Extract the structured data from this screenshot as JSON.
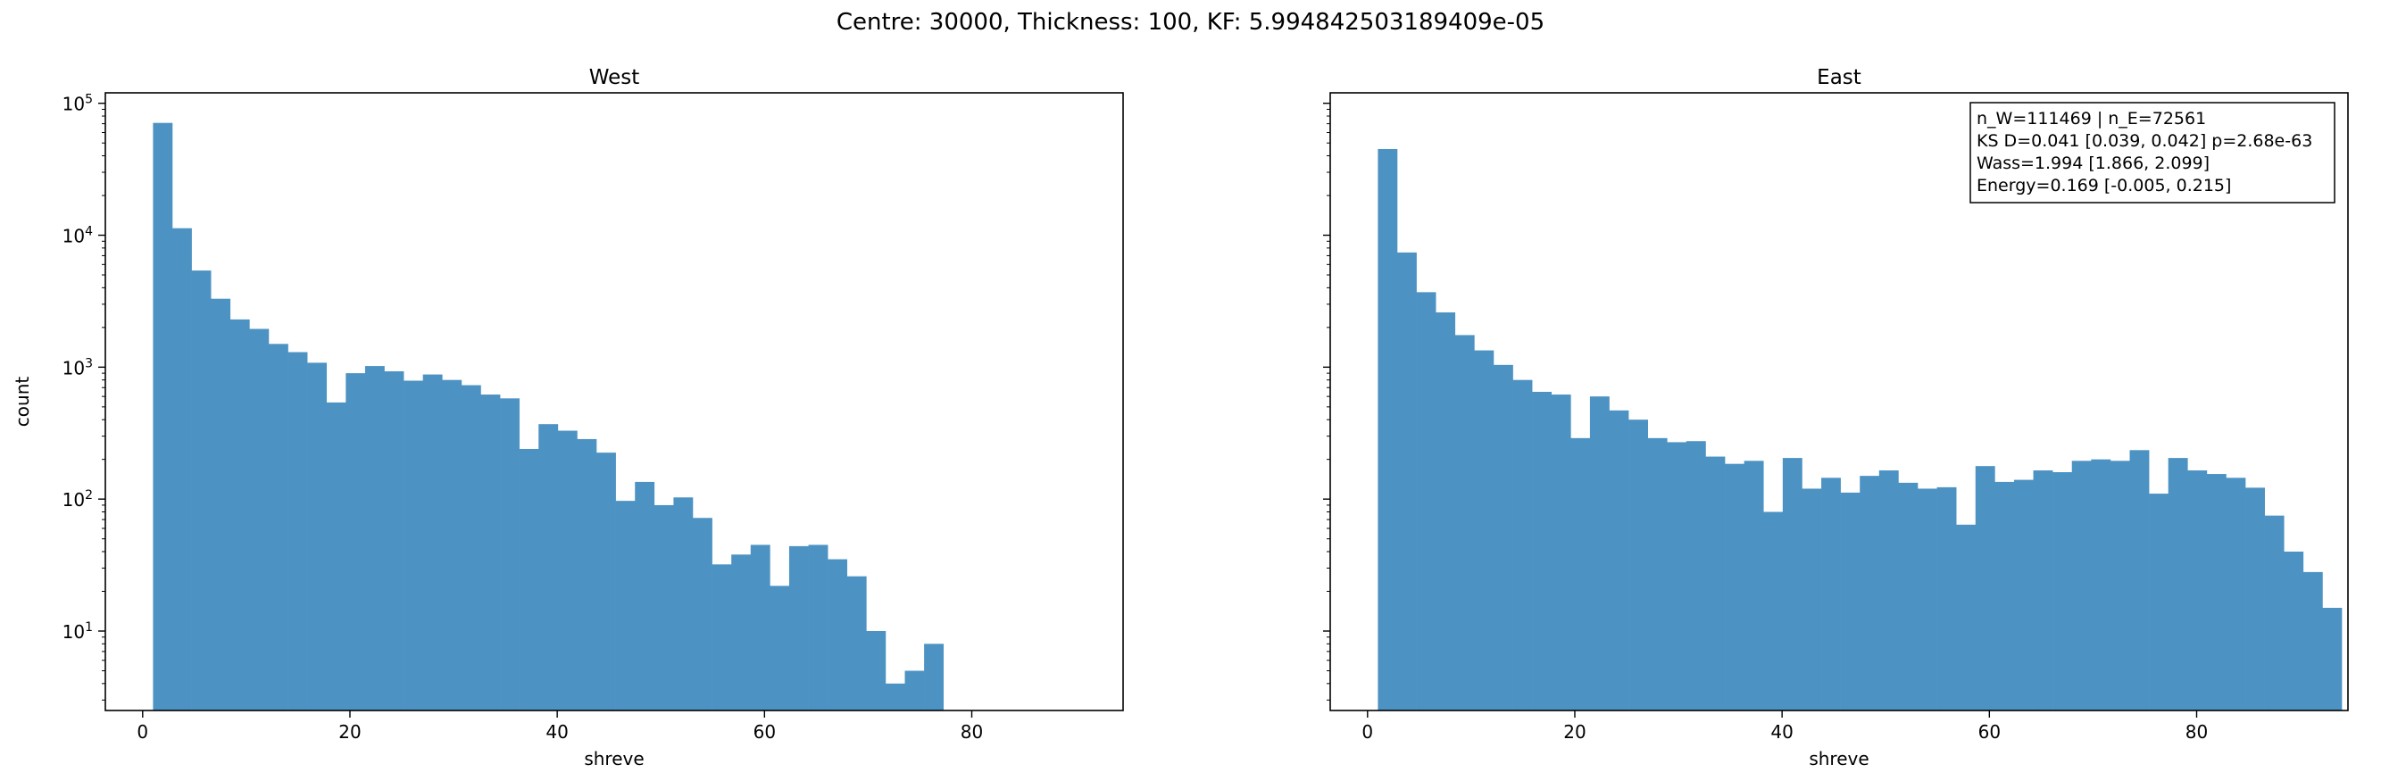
{
  "figure": {
    "suptitle": "Centre: 30000, Thickness: 100, KF: 5.994842503189409e-05"
  },
  "chart_data": [
    {
      "type": "bar",
      "title": "West",
      "xlabel": "shreve",
      "ylabel": "count",
      "yscale": "log",
      "xlim": [
        -3.6,
        94.6
      ],
      "ylim": [
        2.5,
        120000
      ],
      "xticks": [
        0,
        20,
        40,
        60,
        80
      ],
      "yticks": [
        {
          "value": 10,
          "label": "10^1"
        },
        {
          "value": 100,
          "label": "10^2"
        },
        {
          "value": 1000,
          "label": "10^3"
        },
        {
          "value": 10000,
          "label": "10^4"
        },
        {
          "value": 100000,
          "label": "10^5"
        }
      ],
      "bar_color": "#4c92c3",
      "bin_start": 1,
      "bin_width": 1.86,
      "values": [
        71000,
        11300,
        5400,
        3300,
        2300,
        1950,
        1500,
        1300,
        1080,
        540,
        900,
        1020,
        930,
        790,
        880,
        800,
        730,
        620,
        580,
        240,
        370,
        330,
        285,
        225,
        97,
        135,
        90,
        103,
        72,
        32,
        38,
        45,
        22,
        44,
        45,
        35,
        26,
        10,
        4,
        5,
        8,
        0,
        0,
        0,
        0,
        0,
        0,
        0,
        0,
        0
      ]
    },
    {
      "type": "bar",
      "title": "East",
      "xlabel": "shreve",
      "ylabel": "",
      "yscale": "log",
      "xlim": [
        -3.6,
        94.6
      ],
      "ylim": [
        2.5,
        120000
      ],
      "xticks": [
        0,
        20,
        40,
        60,
        80
      ],
      "yticks": [
        {
          "value": 10,
          "label": ""
        },
        {
          "value": 100,
          "label": ""
        },
        {
          "value": 1000,
          "label": ""
        },
        {
          "value": 10000,
          "label": ""
        },
        {
          "value": 100000,
          "label": ""
        }
      ],
      "bar_color": "#4c92c3",
      "bin_start": 1,
      "bin_width": 1.86,
      "values": [
        45000,
        7400,
        3700,
        2600,
        1750,
        1340,
        1040,
        800,
        650,
        620,
        290,
        600,
        470,
        400,
        290,
        270,
        275,
        210,
        185,
        195,
        80,
        205,
        120,
        145,
        112,
        150,
        165,
        133,
        120,
        123,
        64,
        178,
        135,
        140,
        165,
        160,
        195,
        200,
        195,
        235,
        110,
        205,
        165,
        155,
        145,
        122,
        75,
        40,
        28,
        15
      ]
    }
  ],
  "annotation": {
    "lines": [
      "n_W=111469 | n_E=72561",
      "KS D=0.041 [0.039, 0.042]  p=2.68e-63",
      "Wass=1.994 [1.866, 2.099]",
      "Energy=0.169 [-0.005, 0.215]"
    ]
  }
}
